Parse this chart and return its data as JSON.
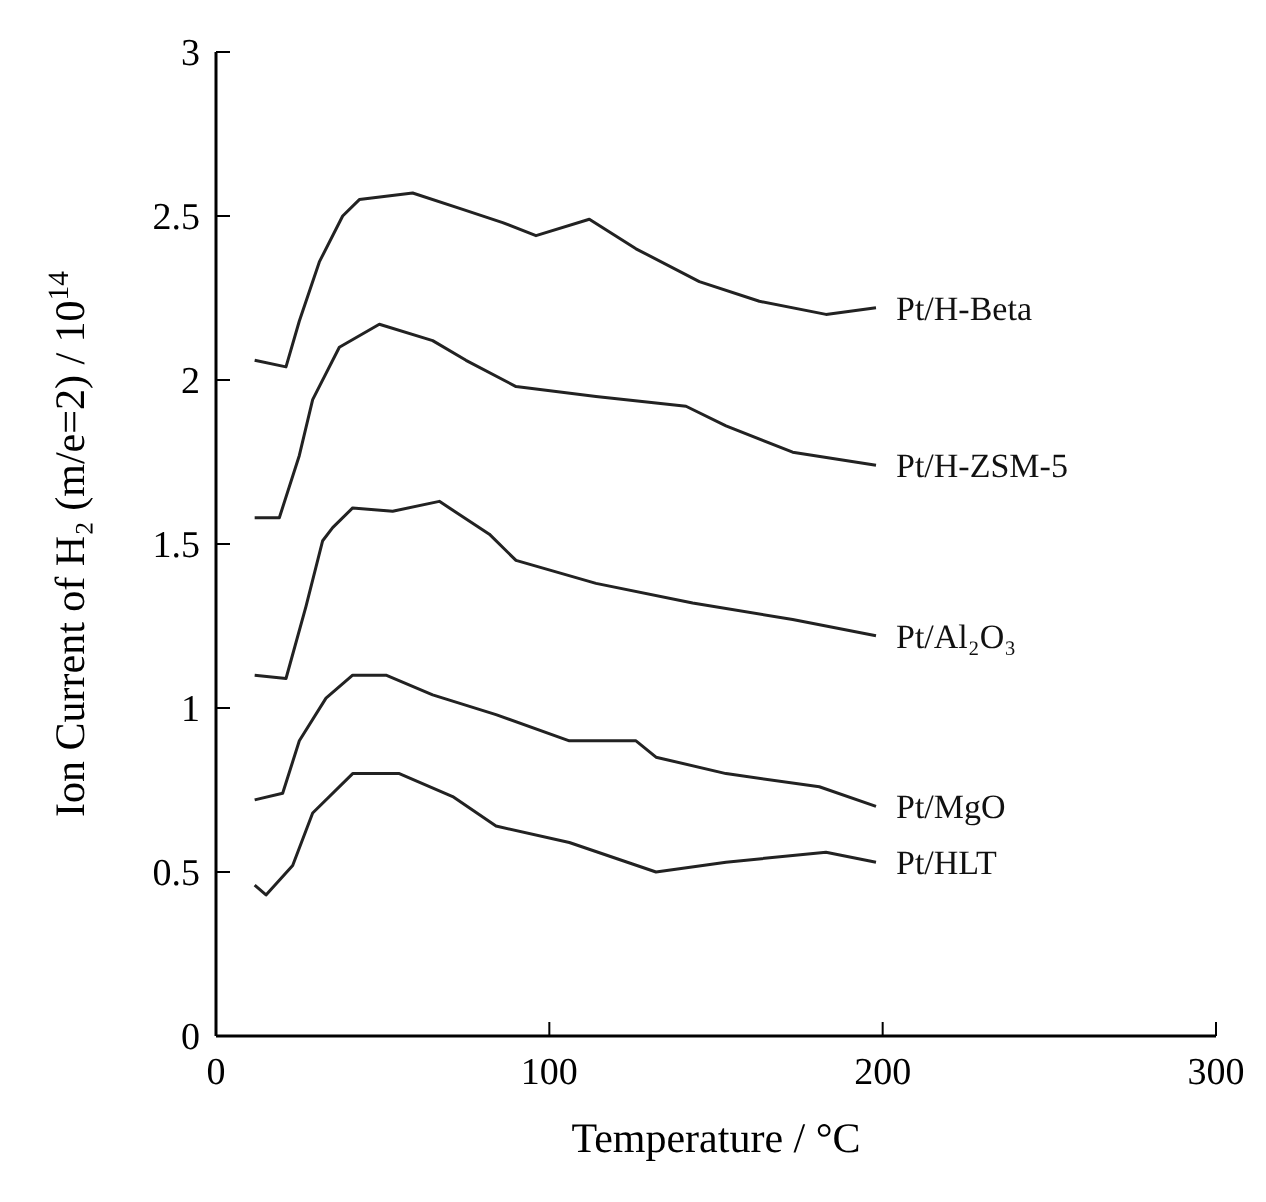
{
  "chart_data": {
    "type": "line",
    "xlabel": "Temperature / °C",
    "ylabel": "Ion Current of H₂ (m/e=2) / 10$^{14}$",
    "xlim": [
      0,
      300
    ],
    "xticks": [
      0,
      100,
      200,
      300
    ],
    "ylim": [
      0,
      3
    ],
    "yticks": [
      0,
      0.5,
      1,
      1.5,
      2,
      2.5,
      3
    ],
    "grid": false,
    "marker": "none",
    "line_style": "solid",
    "series": [
      {
        "name": "Pt/H-Beta",
        "color": "#222222",
        "x": [
          11.6,
          21,
          25,
          31,
          38,
          43,
          59,
          74,
          86,
          96,
          112,
          126,
          145,
          163,
          183,
          198
        ],
        "values": [
          2.06,
          2.04,
          2.18,
          2.36,
          2.5,
          2.55,
          2.57,
          2.52,
          2.48,
          2.44,
          2.49,
          2.4,
          2.3,
          2.24,
          2.2,
          2.22
        ]
      },
      {
        "name": "Pt/H-ZSM-5",
        "color": "#222222",
        "x": [
          11.6,
          19,
          25,
          29,
          37,
          49,
          65,
          75,
          90,
          114,
          141,
          153,
          173,
          198
        ],
        "values": [
          1.58,
          1.58,
          1.77,
          1.94,
          2.1,
          2.17,
          2.12,
          2.06,
          1.98,
          1.95,
          1.92,
          1.86,
          1.78,
          1.74
        ]
      },
      {
        "name": "Pt/Al₂O₃",
        "color": "#222222",
        "x": [
          11.6,
          21,
          27,
          32,
          35,
          41,
          53,
          67,
          82,
          90,
          114,
          143,
          173,
          198
        ],
        "values": [
          1.1,
          1.09,
          1.31,
          1.51,
          1.55,
          1.61,
          1.6,
          1.63,
          1.53,
          1.45,
          1.38,
          1.32,
          1.27,
          1.22
        ]
      },
      {
        "name": "Pt/MgO",
        "color": "#222222",
        "x": [
          11.6,
          20,
          25,
          33,
          41,
          51,
          65,
          84,
          106,
          126,
          132,
          153,
          181,
          198
        ],
        "values": [
          0.72,
          0.74,
          0.9,
          1.03,
          1.1,
          1.1,
          1.04,
          0.98,
          0.9,
          0.9,
          0.85,
          0.8,
          0.76,
          0.7
        ]
      },
      {
        "name": "Pt/HLT",
        "color": "#222222",
        "x": [
          11.6,
          15,
          23,
          29,
          41,
          55,
          71,
          84,
          106,
          132,
          153,
          183,
          198
        ],
        "values": [
          0.46,
          0.43,
          0.52,
          0.68,
          0.8,
          0.8,
          0.73,
          0.64,
          0.59,
          0.5,
          0.53,
          0.56,
          0.53
        ]
      }
    ]
  }
}
